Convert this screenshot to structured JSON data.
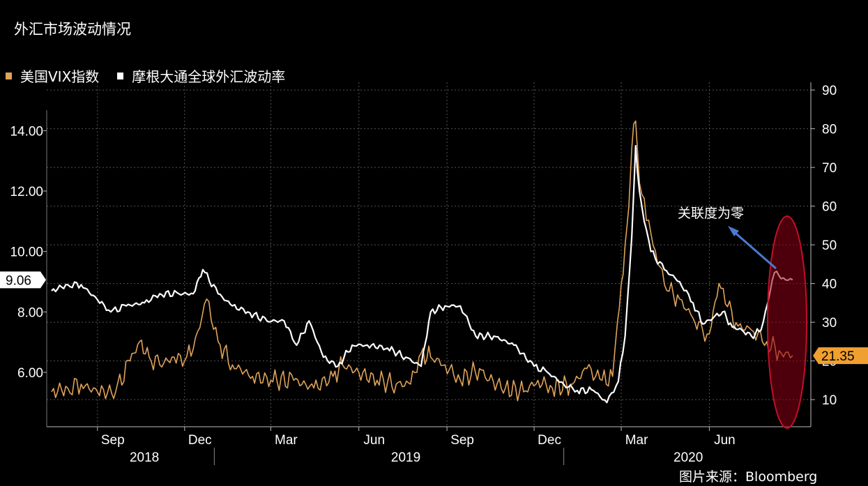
{
  "title": "外汇市场波动情况",
  "legend": [
    {
      "label": "美国VIX指数",
      "color": "#e0a35a"
    },
    {
      "label": "摩根大通全球外汇波动率",
      "color": "#ffffff"
    }
  ],
  "annotation": "关联度为零",
  "credit": "图片来源：Bloomberg",
  "chart_data": {
    "type": "line",
    "title": "外汇市场波动情况",
    "x": {
      "months": [
        "Sep",
        "Dec",
        "Mar",
        "Jun",
        "Sep",
        "Dec",
        "Mar",
        "Jun"
      ],
      "years": [
        "2018",
        "2019",
        "2020"
      ]
    },
    "y_left": {
      "ticks": [
        "6.00",
        "8.00",
        "10.00",
        "12.00",
        "14.00"
      ],
      "range": [
        4.2,
        15.6
      ],
      "last_value_label": "9.06"
    },
    "y_right": {
      "ticks": [
        "10",
        "20",
        "30",
        "40",
        "50",
        "60",
        "70",
        "80",
        "90"
      ],
      "range": [
        3,
        92
      ],
      "last_value_label": "21.35"
    },
    "series": [
      {
        "name": "美国VIX指数",
        "axis": "right",
        "color": "#e0a35a",
        "points": [
          [
            "2018-07-15",
            12
          ],
          [
            "2018-08-01",
            13
          ],
          [
            "2018-08-15",
            14
          ],
          [
            "2018-09-01",
            12
          ],
          [
            "2018-09-20",
            12
          ],
          [
            "2018-10-05",
            20
          ],
          [
            "2018-10-15",
            25
          ],
          [
            "2018-10-25",
            21
          ],
          [
            "2018-11-05",
            19
          ],
          [
            "2018-11-20",
            21
          ],
          [
            "2018-12-01",
            20
          ],
          [
            "2018-12-10",
            23
          ],
          [
            "2018-12-24",
            36
          ],
          [
            "2019-01-05",
            25
          ],
          [
            "2019-01-20",
            19
          ],
          [
            "2019-02-10",
            16
          ],
          [
            "2019-03-01",
            15
          ],
          [
            "2019-03-25",
            15
          ],
          [
            "2019-04-15",
            13
          ],
          [
            "2019-05-05",
            16
          ],
          [
            "2019-05-15",
            19
          ],
          [
            "2019-06-01",
            17
          ],
          [
            "2019-06-20",
            15
          ],
          [
            "2019-07-10",
            14
          ],
          [
            "2019-07-25",
            14
          ],
          [
            "2019-08-05",
            22
          ],
          [
            "2019-08-15",
            21
          ],
          [
            "2019-08-30",
            19
          ],
          [
            "2019-09-15",
            15
          ],
          [
            "2019-10-05",
            18
          ],
          [
            "2019-10-15",
            15
          ],
          [
            "2019-11-01",
            13
          ],
          [
            "2019-11-20",
            12
          ],
          [
            "2019-12-05",
            15
          ],
          [
            "2019-12-20",
            13
          ],
          [
            "2020-01-10",
            14
          ],
          [
            "2020-01-25",
            18
          ],
          [
            "2020-02-10",
            15
          ],
          [
            "2020-02-21",
            16
          ],
          [
            "2020-02-26",
            30
          ],
          [
            "2020-03-01",
            40
          ],
          [
            "2020-03-05",
            50
          ],
          [
            "2020-03-09",
            60
          ],
          [
            "2020-03-12",
            75
          ],
          [
            "2020-03-16",
            82
          ],
          [
            "2020-03-20",
            66
          ],
          [
            "2020-03-25",
            62
          ],
          [
            "2020-04-01",
            53
          ],
          [
            "2020-04-08",
            45
          ],
          [
            "2020-04-20",
            38
          ],
          [
            "2020-05-01",
            36
          ],
          [
            "2020-05-15",
            31
          ],
          [
            "2020-05-25",
            28
          ],
          [
            "2020-06-01",
            27
          ],
          [
            "2020-06-11",
            40
          ],
          [
            "2020-06-20",
            34
          ],
          [
            "2020-07-01",
            29
          ],
          [
            "2020-07-15",
            28
          ],
          [
            "2020-07-31",
            25
          ],
          [
            "2020-08-15",
            22
          ],
          [
            "2020-08-27",
            21.35
          ]
        ]
      },
      {
        "name": "摩根大通全球外汇波动率",
        "axis": "left",
        "color": "#ffffff",
        "points": [
          [
            "2018-07-15",
            8.7
          ],
          [
            "2018-08-01",
            8.9
          ],
          [
            "2018-08-15",
            8.9
          ],
          [
            "2018-09-01",
            8.4
          ],
          [
            "2018-09-15",
            8.0
          ],
          [
            "2018-10-01",
            8.2
          ],
          [
            "2018-10-20",
            8.3
          ],
          [
            "2018-11-05",
            8.6
          ],
          [
            "2018-11-25",
            8.6
          ],
          [
            "2018-12-10",
            8.6
          ],
          [
            "2018-12-20",
            9.4
          ],
          [
            "2019-01-05",
            8.6
          ],
          [
            "2019-01-20",
            8.2
          ],
          [
            "2019-02-05",
            8.0
          ],
          [
            "2019-02-25",
            7.7
          ],
          [
            "2019-03-15",
            7.7
          ],
          [
            "2019-03-28",
            6.9
          ],
          [
            "2019-04-10",
            7.7
          ],
          [
            "2019-04-25",
            6.5
          ],
          [
            "2019-05-10",
            6.2
          ],
          [
            "2019-05-25",
            6.9
          ],
          [
            "2019-06-10",
            6.9
          ],
          [
            "2019-07-01",
            6.8
          ],
          [
            "2019-07-20",
            6.5
          ],
          [
            "2019-08-05",
            6.2
          ],
          [
            "2019-08-15",
            8.0
          ],
          [
            "2019-08-30",
            8.2
          ],
          [
            "2019-09-15",
            8.2
          ],
          [
            "2019-10-01",
            7.2
          ],
          [
            "2019-10-20",
            7.2
          ],
          [
            "2019-11-10",
            6.9
          ],
          [
            "2019-12-01",
            6.2
          ],
          [
            "2019-12-15",
            6.0
          ],
          [
            "2020-01-01",
            5.6
          ],
          [
            "2020-01-15",
            5.4
          ],
          [
            "2020-02-01",
            5.4
          ],
          [
            "2020-02-15",
            5.0
          ],
          [
            "2020-02-27",
            5.7
          ],
          [
            "2020-03-05",
            7.2
          ],
          [
            "2020-03-12",
            10.5
          ],
          [
            "2020-03-16",
            13.5
          ],
          [
            "2020-03-20",
            12.0
          ],
          [
            "2020-03-25",
            11.0
          ],
          [
            "2020-04-01",
            10.0
          ],
          [
            "2020-04-15",
            9.4
          ],
          [
            "2020-05-01",
            9.0
          ],
          [
            "2020-05-15",
            8.3
          ],
          [
            "2020-05-25",
            7.6
          ],
          [
            "2020-06-05",
            7.8
          ],
          [
            "2020-06-15",
            8.0
          ],
          [
            "2020-06-25",
            7.5
          ],
          [
            "2020-07-05",
            7.4
          ],
          [
            "2020-07-15",
            7.2
          ],
          [
            "2020-07-25",
            7.4
          ],
          [
            "2020-08-01",
            8.3
          ],
          [
            "2020-08-08",
            9.3
          ],
          [
            "2020-08-15",
            9.1
          ],
          [
            "2020-08-27",
            9.06
          ]
        ]
      }
    ],
    "grid": true,
    "legend_position": "top-left"
  }
}
